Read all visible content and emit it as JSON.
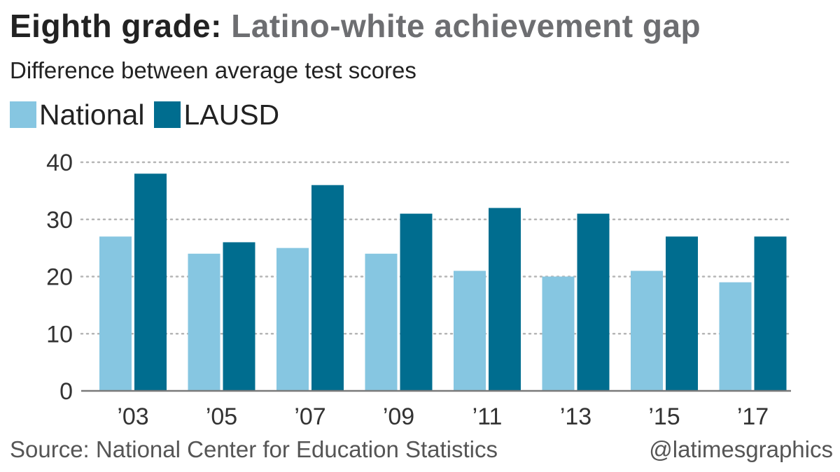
{
  "header": {
    "title_lead": "Eighth grade:",
    "title_rest": "Latino-white achievement gap",
    "subtitle": "Difference between average test scores"
  },
  "legend": {
    "items": [
      {
        "label": "National",
        "color": "#86c6e1"
      },
      {
        "label": "LAUSD",
        "color": "#006d8f"
      }
    ]
  },
  "footer": {
    "source": "Source: National Center for Education Statistics",
    "credit": "@latimesgraphics"
  },
  "chart_data": {
    "type": "bar",
    "categories": [
      "’03",
      "’05",
      "’07",
      "’09",
      "’11",
      "’13",
      "’15",
      "’17"
    ],
    "series": [
      {
        "name": "National",
        "color": "#86c6e1",
        "values": [
          27,
          24,
          25,
          24,
          21,
          20,
          21,
          19
        ]
      },
      {
        "name": "LAUSD",
        "color": "#006d8f",
        "values": [
          38,
          26,
          36,
          31,
          32,
          31,
          27,
          27
        ]
      }
    ],
    "yticks": [
      0,
      10,
      20,
      30,
      40
    ],
    "ylim": [
      0,
      40
    ],
    "grid": true,
    "legend_position": "top-left"
  }
}
